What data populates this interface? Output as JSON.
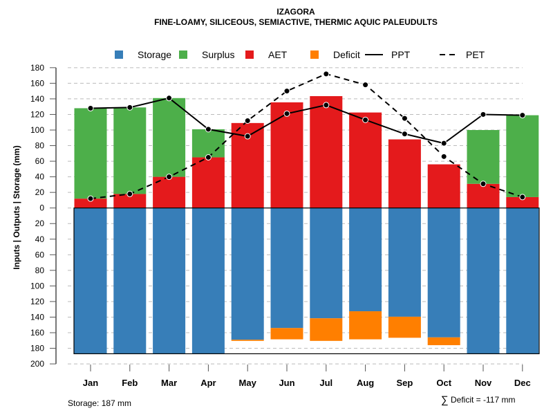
{
  "chart_data": {
    "type": "bar",
    "title": "IZAGORA",
    "subtitle": "FINE-LOAMY, SILICEOUS, SEMIACTIVE, THERMIC AQUIC PALEUDULTS",
    "ylabel": "Inputs | Outputs | Storage    (mm)",
    "ylim": [
      -200,
      180
    ],
    "yticks": [
      180,
      160,
      140,
      120,
      100,
      80,
      60,
      40,
      20,
      0,
      -20,
      -40,
      -60,
      -80,
      -100,
      -120,
      -140,
      -160,
      -180,
      -200
    ],
    "categories": [
      "Jan",
      "Feb",
      "Mar",
      "Apr",
      "May",
      "Jun",
      "Jul",
      "Aug",
      "Sep",
      "Oct",
      "Nov",
      "Dec"
    ],
    "legend": {
      "position": "top",
      "entries": [
        {
          "label": "Storage",
          "color": "#377EB8",
          "kind": "box"
        },
        {
          "label": "Surplus",
          "color": "#4DAF4A",
          "kind": "box"
        },
        {
          "label": "AET",
          "color": "#E41A1C",
          "kind": "box"
        },
        {
          "label": "Deficit",
          "color": "#FF7F00",
          "kind": "box"
        },
        {
          "label": "PPT",
          "color": "#000000",
          "kind": "solid"
        },
        {
          "label": "PET",
          "color": "#000000",
          "kind": "dashed"
        }
      ]
    },
    "series": [
      {
        "name": "AET",
        "values": [
          12,
          18,
          40,
          65,
          109,
          135.5,
          143.5,
          122.5,
          88,
          56,
          31,
          14
        ]
      },
      {
        "name": "Surplus",
        "values": [
          116,
          111,
          101,
          36,
          0,
          0,
          0,
          0,
          0,
          0,
          69,
          105
        ]
      },
      {
        "name": "Storage",
        "values": [
          187,
          187,
          187,
          187,
          169,
          154,
          141.5,
          132.5,
          139.5,
          166,
          187,
          187
        ]
      },
      {
        "name": "Deficit",
        "values": [
          0,
          0,
          0,
          0,
          1.5,
          14.5,
          29,
          36,
          27,
          10,
          0,
          0
        ]
      },
      {
        "name": "PPT",
        "values": [
          128,
          129,
          141,
          101,
          92,
          121,
          132,
          113,
          95,
          83,
          120,
          119
        ]
      },
      {
        "name": "PET",
        "values": [
          12,
          18,
          40,
          65,
          112,
          150,
          172,
          158,
          115,
          66,
          31,
          14
        ]
      }
    ]
  },
  "footer": {
    "storage": "Storage: 187 mm",
    "deficit_symbol": "∑",
    "deficit": "Deficit = -117 mm"
  }
}
